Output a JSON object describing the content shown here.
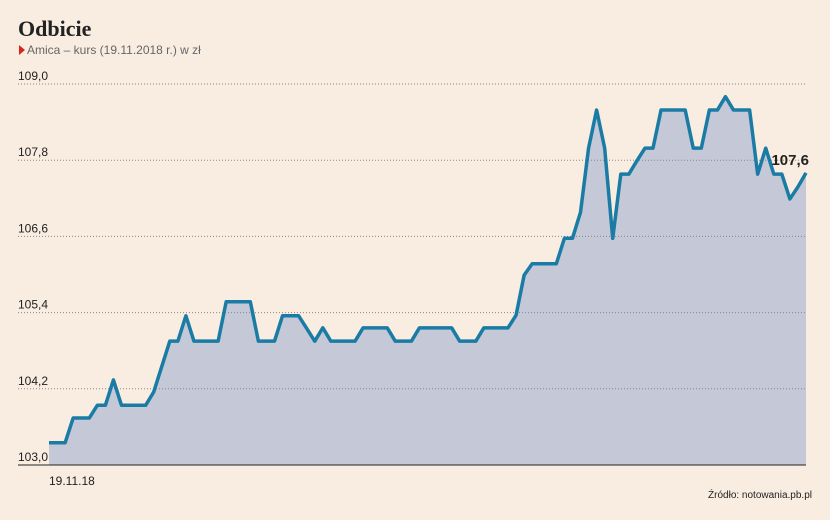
{
  "chart_data": {
    "type": "area",
    "title": "Odbicie",
    "subtitle": "Amica – kurs (19.11.2018 r.) w zł",
    "source": "Źródło: notowania.pb.pl",
    "categories": [
      "19.11.18",
      null,
      null,
      null,
      null,
      null,
      null,
      null,
      null,
      null,
      null,
      null,
      null,
      null,
      null,
      null,
      null,
      null,
      null,
      null,
      null,
      null,
      null,
      null,
      null,
      null,
      null,
      null,
      null,
      null,
      null,
      null,
      null,
      null,
      null,
      null,
      null,
      null,
      null,
      null,
      null,
      null,
      null,
      null,
      null,
      null,
      null,
      null,
      null,
      null,
      null,
      null,
      null,
      null,
      null,
      null,
      null,
      null,
      null,
      null,
      null,
      null,
      null,
      null,
      null,
      null,
      null,
      null,
      null,
      null,
      null,
      null,
      null,
      null,
      null,
      null,
      null,
      null,
      null,
      null,
      null,
      null,
      null,
      null,
      null,
      null,
      null,
      null,
      null,
      null,
      null,
      null,
      null,
      null,
      null
    ],
    "values": [
      103.35,
      103.35,
      103.35,
      103.74,
      103.74,
      103.74,
      103.94,
      103.94,
      104.34,
      103.94,
      103.94,
      103.94,
      103.94,
      104.15,
      104.55,
      104.95,
      104.95,
      105.35,
      104.95,
      104.95,
      104.95,
      104.95,
      105.57,
      105.57,
      105.57,
      105.57,
      104.95,
      104.95,
      104.95,
      105.35,
      105.35,
      105.35,
      105.15,
      104.95,
      105.16,
      104.95,
      104.95,
      104.95,
      104.95,
      105.16,
      105.16,
      105.16,
      105.16,
      104.95,
      104.95,
      104.95,
      105.16,
      105.16,
      105.16,
      105.16,
      105.16,
      104.95,
      104.95,
      104.95,
      105.16,
      105.16,
      105.16,
      105.16,
      105.36,
      105.99,
      106.17,
      106.17,
      106.17,
      106.17,
      106.57,
      106.57,
      106.98,
      107.99,
      108.59,
      107.99,
      106.57,
      107.58,
      107.58,
      107.79,
      107.99,
      107.99,
      108.59,
      108.59,
      108.59,
      108.59,
      107.99,
      107.99,
      108.59,
      108.59,
      108.8,
      108.59,
      108.59,
      108.59,
      107.58,
      107.99,
      107.58,
      107.58,
      107.19,
      107.38,
      107.6
    ],
    "value_labels": [
      null,
      null,
      null,
      null,
      null,
      null,
      null,
      null,
      null,
      null,
      null,
      null,
      null,
      null,
      null,
      null,
      null,
      null,
      null,
      null,
      null,
      null,
      null,
      null,
      null,
      null,
      null,
      null,
      null,
      null,
      null,
      null,
      null,
      null,
      null,
      null,
      null,
      null,
      null,
      null,
      null,
      null,
      null,
      null,
      null,
      null,
      null,
      null,
      null,
      null,
      null,
      null,
      null,
      null,
      null,
      null,
      null,
      null,
      null,
      null,
      null,
      null,
      null,
      null,
      null,
      null,
      null,
      null,
      null,
      null,
      null,
      null,
      null,
      null,
      null,
      null,
      null,
      null,
      null,
      null,
      null,
      null,
      null,
      null,
      null,
      null,
      null,
      null,
      null,
      null,
      null,
      null,
      null,
      null,
      "107,6"
    ],
    "color": "#1a7ca5",
    "fill": "#c4c8d7",
    "ylim": [
      103,
      109
    ],
    "yticks": [
      {
        "value": 103,
        "label": "103,0"
      },
      {
        "value": 104.2,
        "label": "104,2"
      },
      {
        "value": 105.4,
        "label": "105,4"
      },
      {
        "value": 106.6,
        "label": "106,6"
      },
      {
        "value": 107.8,
        "label": "107,8"
      },
      {
        "value": 109,
        "label": "109,0"
      }
    ],
    "grid": true
  }
}
